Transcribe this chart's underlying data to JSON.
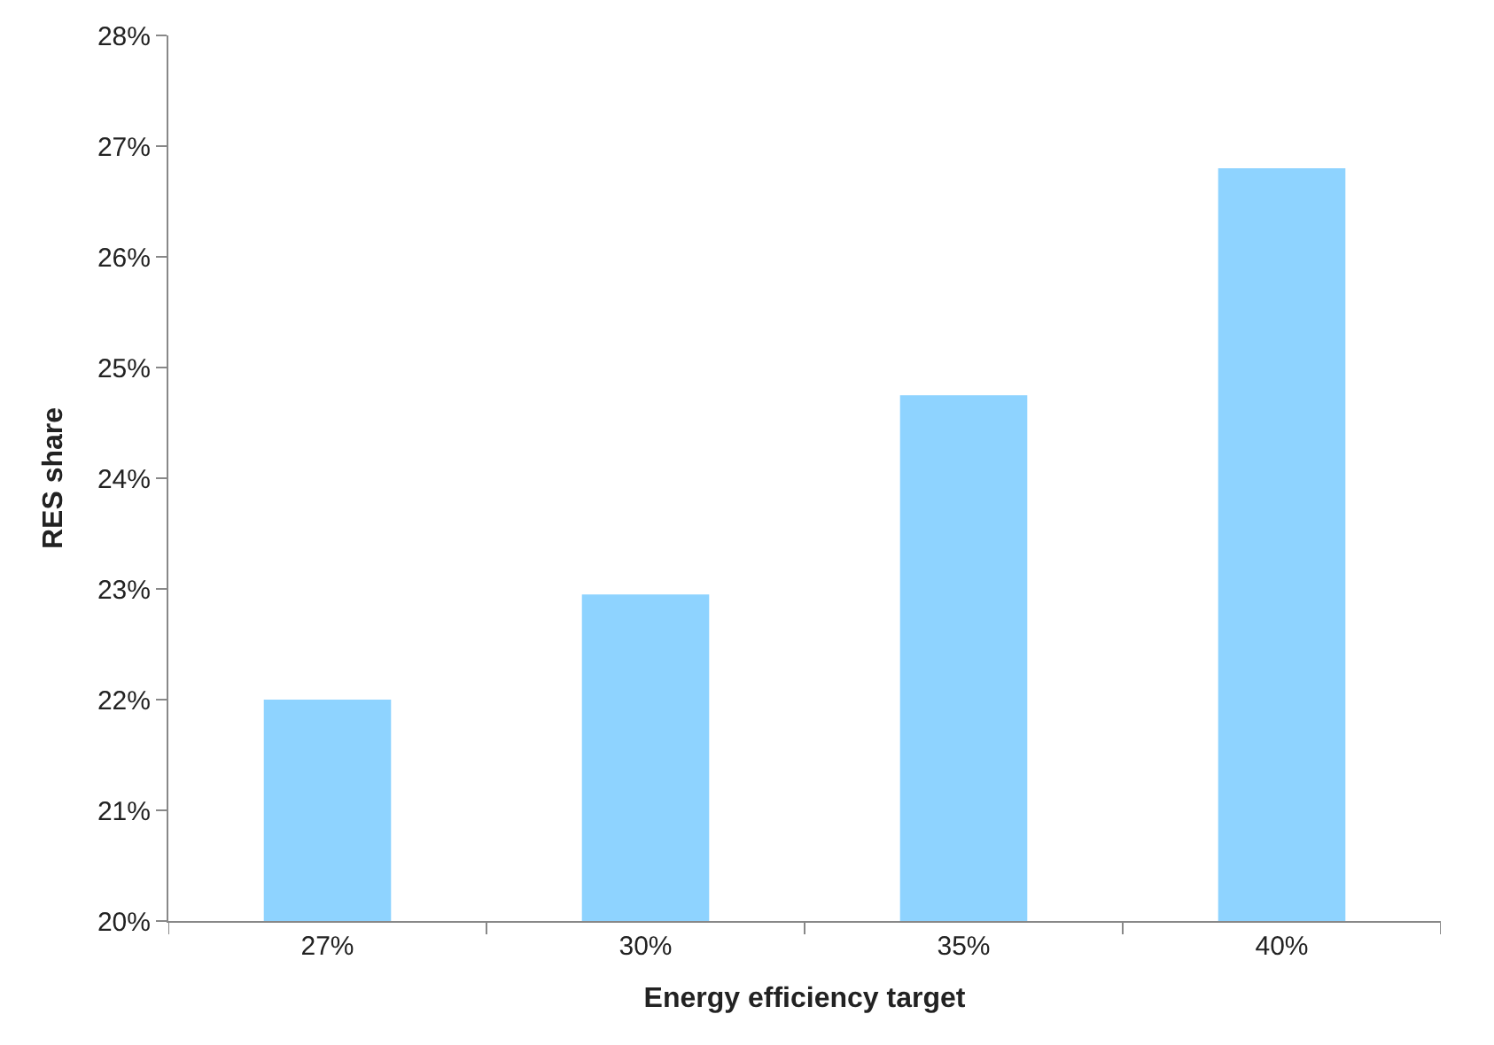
{
  "chart_data": {
    "type": "bar",
    "xlabel": "Energy efficiency target",
    "ylabel": "RES share",
    "categories": [
      "27%",
      "30%",
      "35%",
      "40%"
    ],
    "values": [
      22.0,
      22.95,
      24.75,
      26.8
    ],
    "color": "#8ed3ff",
    "ylim": [
      20,
      28
    ],
    "grid": false,
    "yticks": [
      {
        "value": 20,
        "label": "20%"
      },
      {
        "value": 21,
        "label": "21%"
      },
      {
        "value": 22,
        "label": "22%"
      },
      {
        "value": 23,
        "label": "23%"
      },
      {
        "value": 24,
        "label": "24%"
      },
      {
        "value": 25,
        "label": "25%"
      },
      {
        "value": 26,
        "label": "26%"
      },
      {
        "value": 27,
        "label": "27%"
      },
      {
        "value": 28,
        "label": "28%"
      }
    ],
    "legend": false
  }
}
